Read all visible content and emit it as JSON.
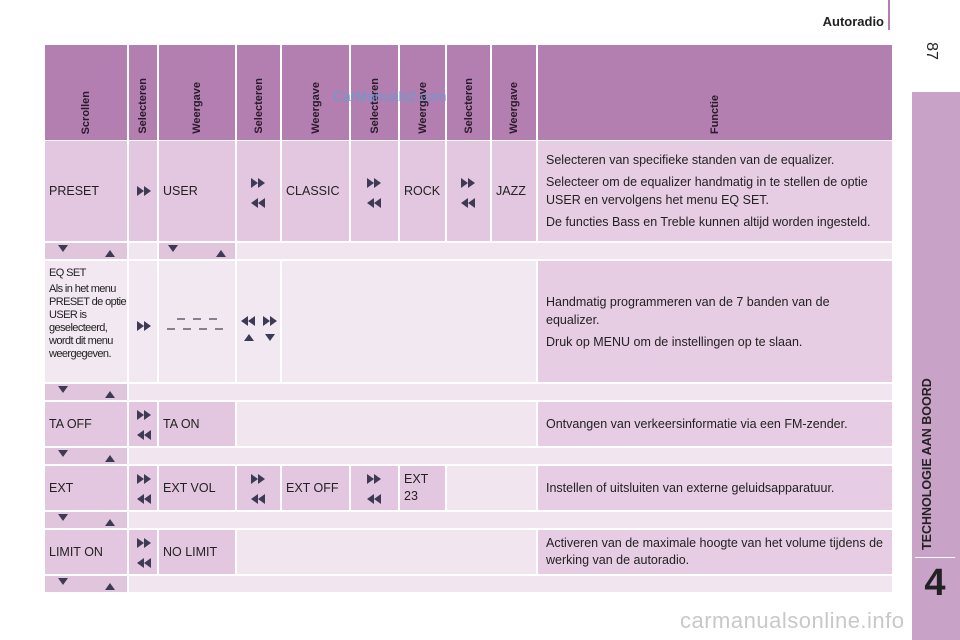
{
  "header": {
    "section": "Autoradio",
    "page": "87"
  },
  "sidebar": {
    "chapter_title": "TECHNOLOGIE AAN BOORD",
    "chapter_number": "4"
  },
  "watermarks": [
    "CarManuals2.com",
    "carmanualsonline.info"
  ],
  "table": {
    "columns": [
      "Scrollen",
      "Selecteren",
      "Weergave",
      "Selecteren",
      "Weergave",
      "Selecteren",
      "Weergave",
      "Selecteren",
      "Weergave",
      "Functie"
    ],
    "rows": [
      {
        "scrollen": "PRESET",
        "options": [
          "USER",
          "CLASSIC",
          "ROCK",
          "JAZZ"
        ],
        "function": [
          "Selecteren van specifieke standen van de equalizer.",
          "Selecteer om de equalizer handmatig in te stellen de optie USER en vervolgens het menu EQ SET.",
          "De functies Bass en Treble kunnen altijd worden ingesteld."
        ]
      },
      {
        "scrollen": "EQ SET",
        "note": "Als in het menu PRESET de optie USER is geselecteerd, wordt dit menu weergegeven.",
        "function": [
          "Handmatig programmeren van de 7 banden van de equalizer.",
          "Druk op MENU om de instellingen op te slaan."
        ]
      },
      {
        "scrollen": "TA OFF",
        "options": [
          "TA ON"
        ],
        "function": [
          "Ontvangen van verkeersinformatie via een FM-zender."
        ]
      },
      {
        "scrollen": "EXT",
        "options": [
          "EXT VOL",
          "EXT OFF",
          "EXT 23"
        ],
        "function": [
          "Instellen of uitsluiten van externe geluidsapparatuur."
        ]
      },
      {
        "scrollen": "LIMIT ON",
        "options": [
          "NO LIMIT"
        ],
        "function": [
          "Activeren van de maximale hoogte van het volume tijdens de werking van de autoradio."
        ]
      }
    ]
  }
}
